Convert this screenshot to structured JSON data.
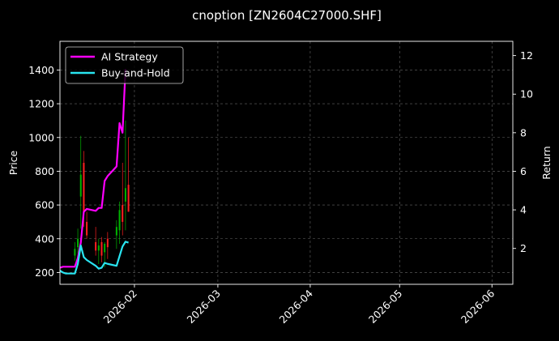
{
  "chart_data": {
    "type": "line",
    "title": "cnoption [ZN2604C27000.SHF]",
    "ylabel": "Price",
    "y2label": "Return",
    "xlim": [
      "2026-01-07",
      "2026-06-08"
    ],
    "ylim": [
      130,
      1570
    ],
    "y2lim": [
      0.14,
      12.74
    ],
    "xticks": [
      "2026-02",
      "2026-03",
      "2026-04",
      "2026-05",
      "2026-06"
    ],
    "yticks": [
      200,
      400,
      600,
      800,
      1000,
      1200,
      1400
    ],
    "y2ticks": [
      2,
      4,
      6,
      8,
      10,
      12
    ],
    "grid": true,
    "legend_position": "top-left",
    "series": [
      {
        "name": "AI Strategy",
        "axis": "right",
        "color": "#ff00ff",
        "x": [
          "2026-01-07",
          "2026-01-08",
          "2026-01-09",
          "2026-01-12",
          "2026-01-13",
          "2026-01-14",
          "2026-01-15",
          "2026-01-16",
          "2026-01-19",
          "2026-01-20",
          "2026-01-21",
          "2026-01-22",
          "2026-01-23",
          "2026-01-26",
          "2026-01-27",
          "2026-01-28",
          "2026-01-29"
        ],
        "values": [
          1.0,
          1.05,
          1.05,
          1.05,
          1.5,
          2.3,
          3.9,
          4.05,
          3.95,
          4.1,
          4.1,
          5.5,
          5.75,
          6.25,
          8.5,
          8.0,
          11.3
        ]
      },
      {
        "name": "Buy-and-Hold",
        "axis": "right",
        "color": "#29e4f0",
        "x": [
          "2026-01-07",
          "2026-01-08",
          "2026-01-09",
          "2026-01-12",
          "2026-01-13",
          "2026-01-14",
          "2026-01-15",
          "2026-01-16",
          "2026-01-19",
          "2026-01-20",
          "2026-01-21",
          "2026-01-22",
          "2026-01-23",
          "2026-01-26",
          "2026-01-27",
          "2026-01-28",
          "2026-01-29",
          "2026-01-30"
        ],
        "values": [
          0.85,
          0.75,
          0.7,
          0.7,
          1.2,
          2.15,
          1.55,
          1.4,
          1.1,
          0.95,
          1.0,
          1.25,
          1.2,
          1.1,
          1.6,
          2.1,
          2.35,
          2.3
        ]
      }
    ],
    "candles": {
      "axis": "left",
      "up_color": "#00b400",
      "down_color": "#ff2020",
      "x": [
        "2026-01-12",
        "2026-01-13",
        "2026-01-14",
        "2026-01-15",
        "2026-01-16",
        "2026-01-19",
        "2026-01-20",
        "2026-01-21",
        "2026-01-22",
        "2026-01-23",
        "2026-01-26",
        "2026-01-27",
        "2026-01-28",
        "2026-01-29",
        "2026-01-30"
      ],
      "open": [
        300,
        350,
        650,
        850,
        500,
        380,
        330,
        380,
        320,
        400,
        420,
        450,
        600,
        620,
        720
      ],
      "high": [
        380,
        460,
        1010,
        920,
        560,
        470,
        400,
        410,
        380,
        440,
        510,
        620,
        850,
        1100,
        1000
      ],
      "low": [
        270,
        310,
        460,
        470,
        400,
        300,
        250,
        260,
        230,
        280,
        340,
        370,
        420,
        450,
        560
      ],
      "close": [
        340,
        400,
        780,
        560,
        420,
        330,
        360,
        300,
        370,
        350,
        470,
        570,
        500,
        700,
        560
      ]
    }
  }
}
